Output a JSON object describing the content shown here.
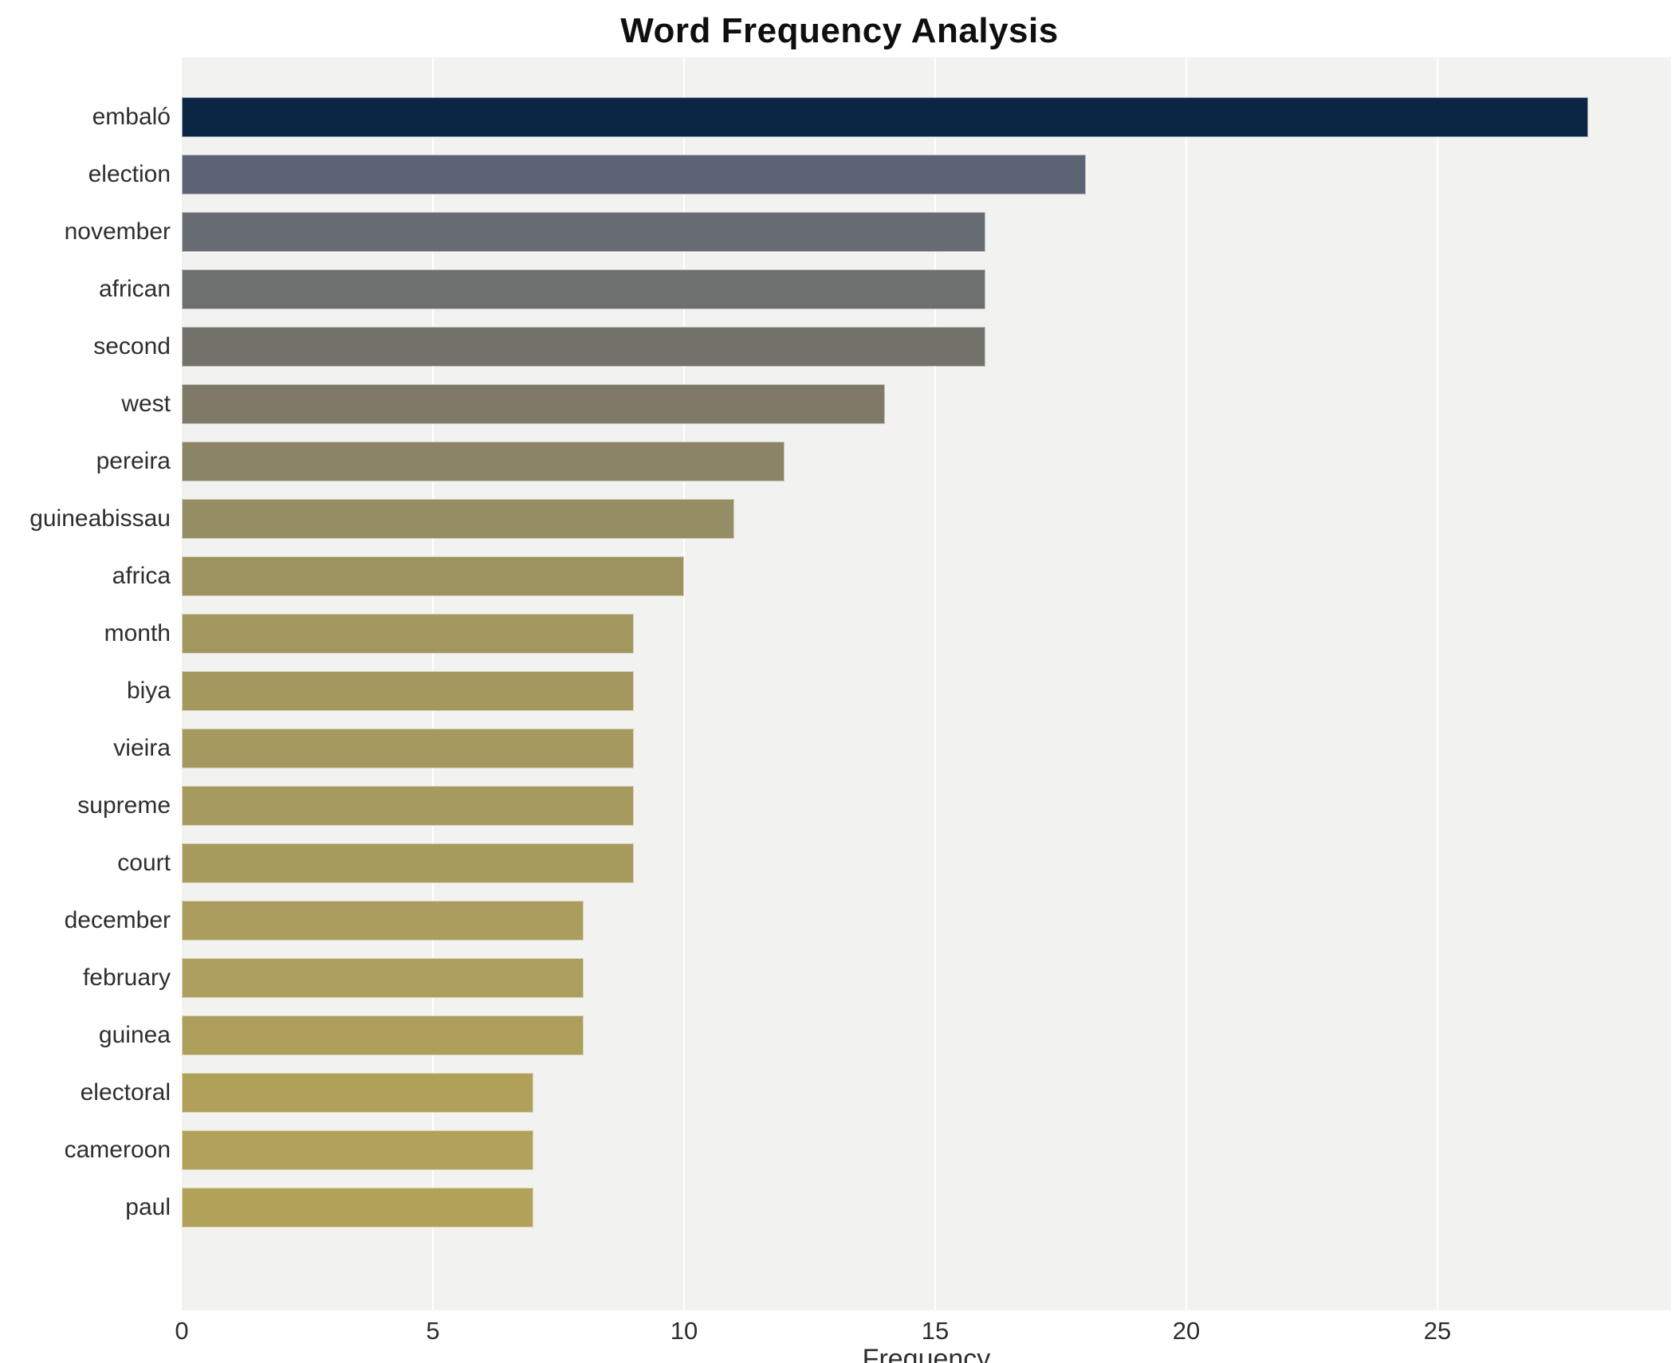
{
  "chart_data": {
    "type": "bar",
    "orientation": "horizontal",
    "title": "Word Frequency Analysis",
    "xlabel": "Frequency",
    "ylabel": "",
    "categories": [
      "embaló",
      "election",
      "november",
      "african",
      "second",
      "west",
      "pereira",
      "guineabissau",
      "africa",
      "month",
      "biya",
      "vieira",
      "supreme",
      "court",
      "december",
      "february",
      "guinea",
      "electoral",
      "cameroon",
      "paul"
    ],
    "values": [
      28,
      18,
      16,
      16,
      16,
      14,
      12,
      11,
      10,
      9,
      9,
      9,
      9,
      9,
      8,
      8,
      8,
      7,
      7,
      7
    ],
    "bar_colors": [
      "#0b2545",
      "#5b6374",
      "#676c72",
      "#6e6f6f",
      "#73726a",
      "#7e7a67",
      "#8b8465",
      "#958d63",
      "#9d9361",
      "#a39760",
      "#a5985f",
      "#a6995f",
      "#a79a5e",
      "#a89b5e",
      "#ab9d5d",
      "#ac9e5c",
      "#ad9e5c",
      "#b0a05a",
      "#b1a15a",
      "#b2a259"
    ],
    "xlim": [
      0,
      29.65
    ],
    "xticks": [
      0,
      5,
      10,
      15,
      20,
      25
    ],
    "grid": "on",
    "legend": "none",
    "plot_bg": "#f2f2f0",
    "gridline_color": "#ffffff"
  }
}
